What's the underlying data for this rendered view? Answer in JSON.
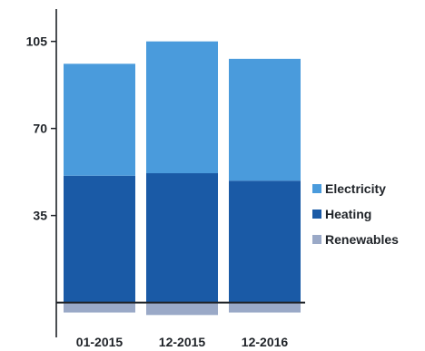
{
  "chart_data": {
    "type": "bar",
    "stacked": true,
    "categories": [
      "01-2015",
      "12-2015",
      "12-2016"
    ],
    "series": [
      {
        "name": "Renewables",
        "values": [
          -4,
          -5,
          -4
        ],
        "color": "#9aa9c7"
      },
      {
        "name": "Heating",
        "values": [
          51,
          52,
          49
        ],
        "color": "#1a5aa6"
      },
      {
        "name": "Electricity",
        "values": [
          45,
          53,
          49
        ],
        "color": "#4a9bdc"
      }
    ],
    "y_ticks": [
      35,
      70,
      105
    ],
    "ylim": [
      -14,
      118
    ],
    "legend": {
      "position": "right",
      "order": [
        "Electricity",
        "Heating",
        "Renewables"
      ]
    },
    "grid": false
  }
}
